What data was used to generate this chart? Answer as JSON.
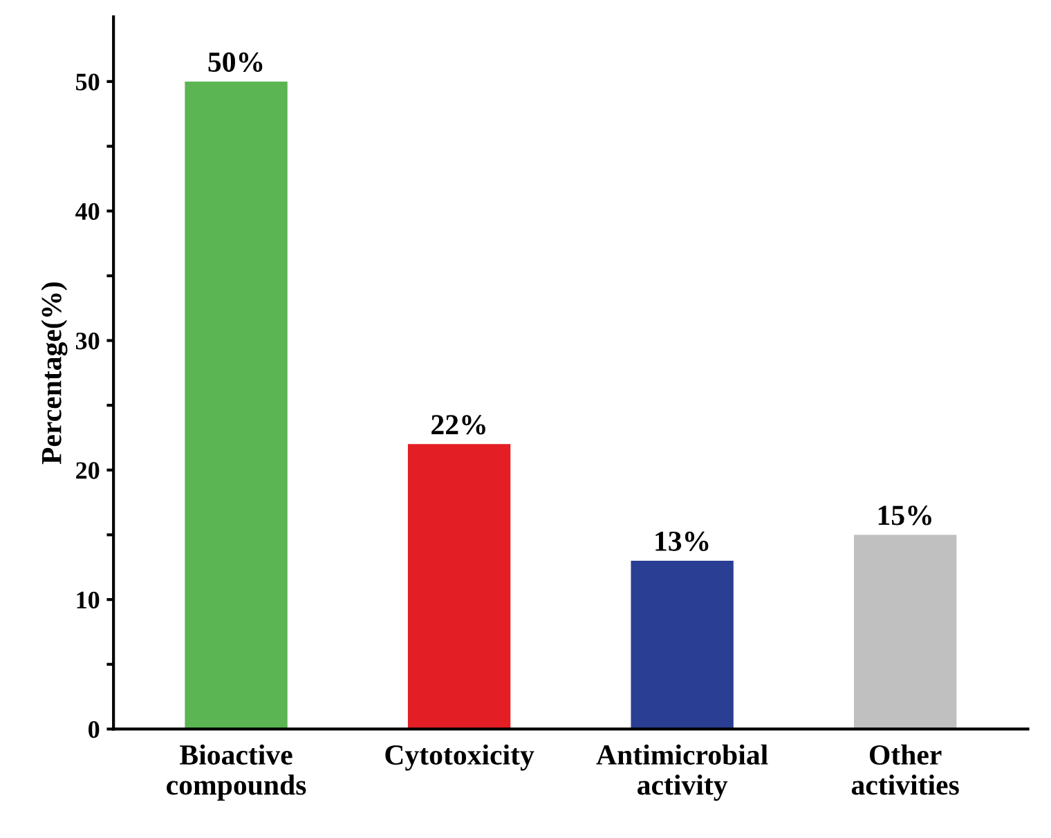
{
  "chart_data": {
    "type": "bar",
    "ylabel": "Percentage(%)",
    "categories": [
      "Bioactive\ncompounds",
      "Cytotoxicity",
      "Antimicrobial\nactivity",
      "Other\nactivities"
    ],
    "values": [
      50,
      22,
      13,
      15
    ],
    "colors": [
      "#5ab552",
      "#e31e24",
      "#2a3f93",
      "#c0c0c0"
    ],
    "value_labels": [
      "50%",
      "22%",
      "13%",
      "15%"
    ],
    "ylim": [
      0,
      55
    ],
    "yticks": [
      0,
      {
        "value": 5,
        "label": null
      },
      10,
      {
        "value": 15,
        "label": null
      },
      20,
      {
        "value": 25,
        "label": null
      },
      30,
      {
        "value": 35,
        "label": null
      },
      40,
      {
        "value": 45,
        "label": null
      },
      50
    ],
    "grid": false,
    "legend": false
  }
}
